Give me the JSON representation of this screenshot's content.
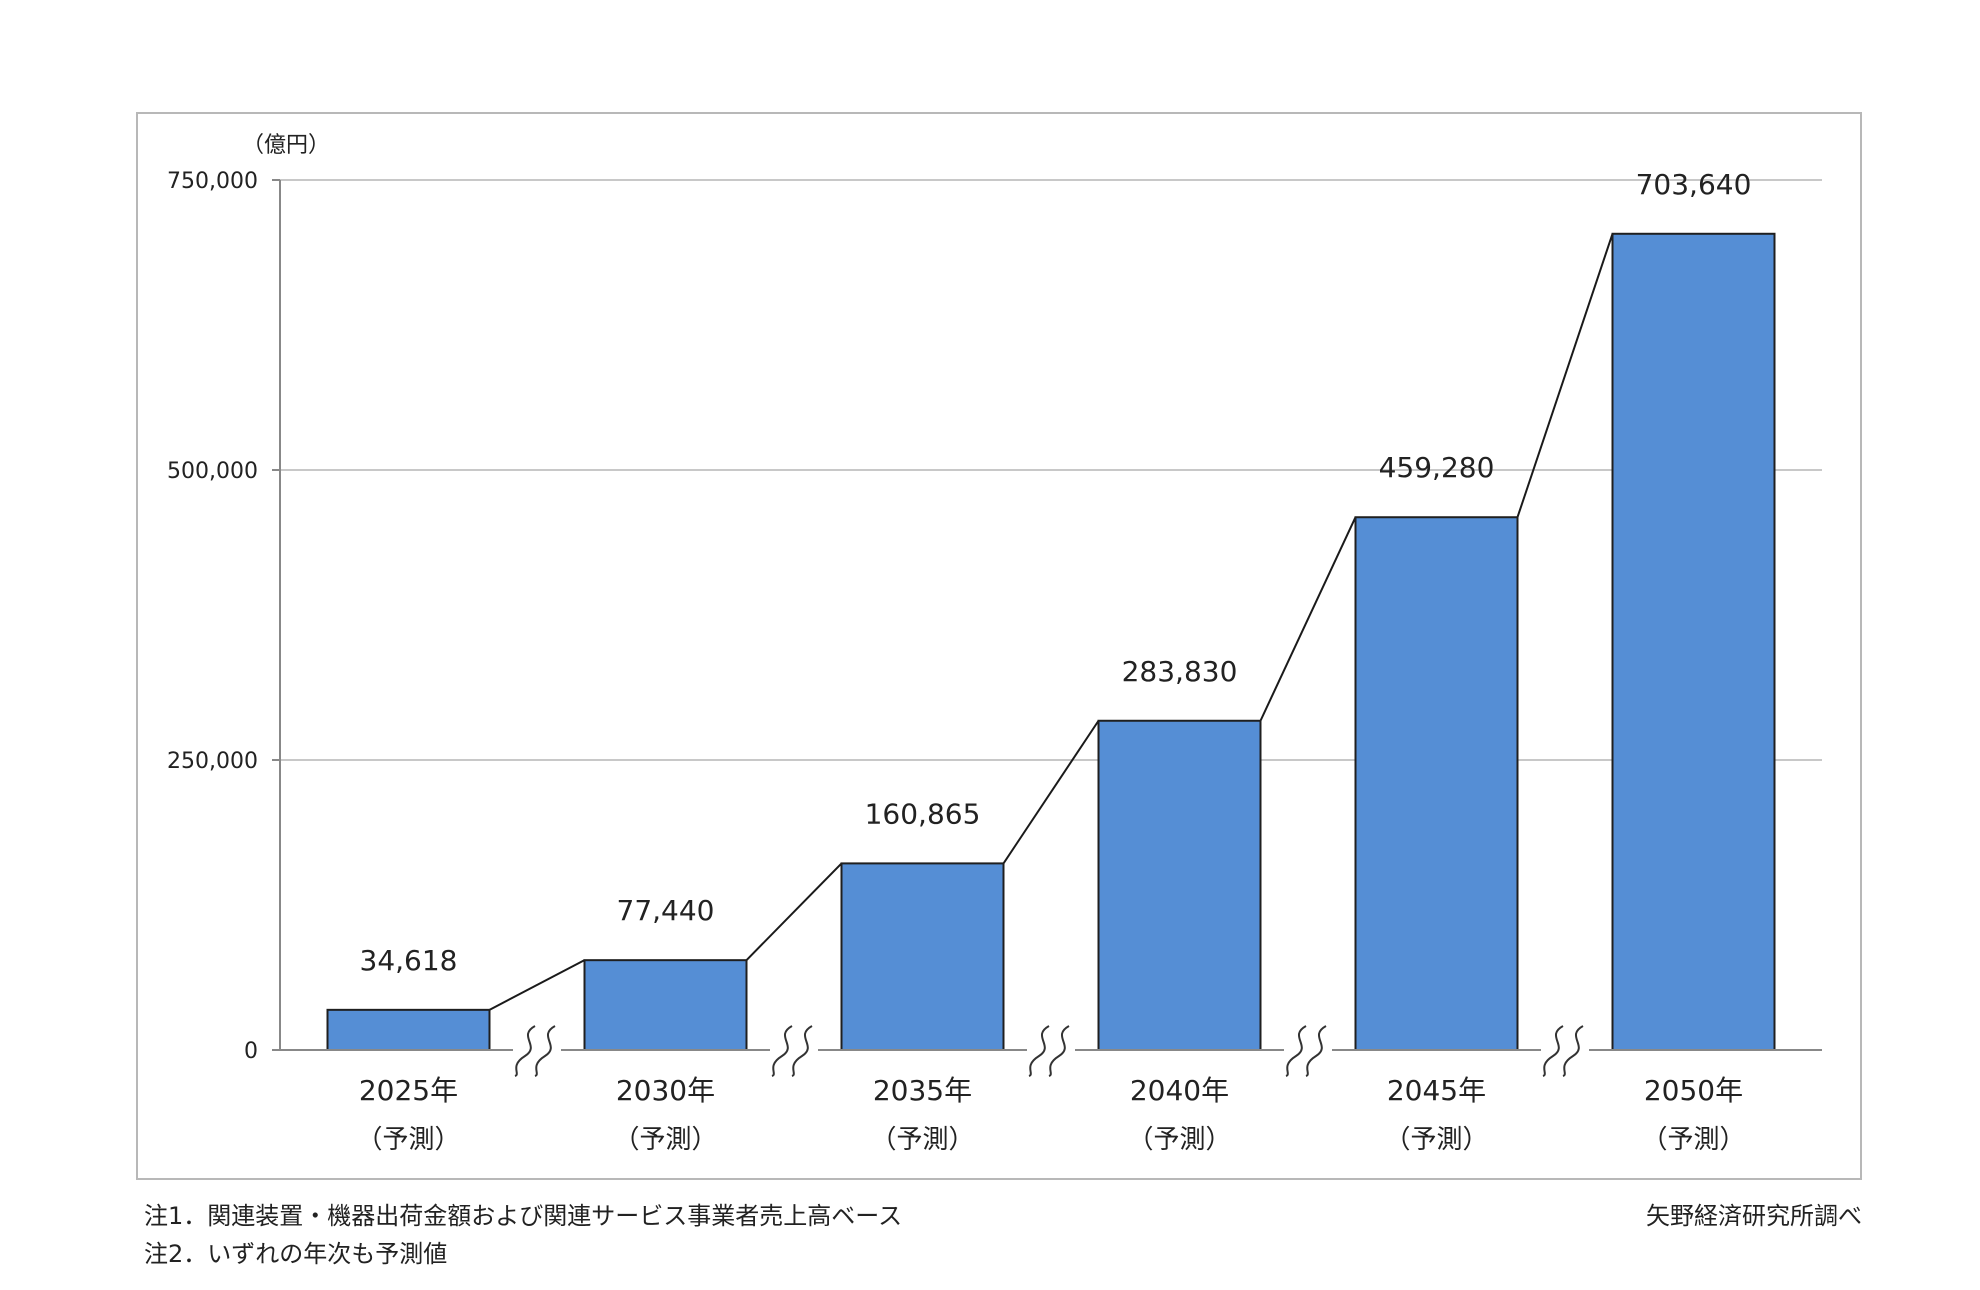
{
  "chart_data": {
    "type": "bar",
    "title": "",
    "xlabel": "",
    "ylabel": "（億円）",
    "ylim": [
      0,
      750000
    ],
    "yticks": [
      0,
      250000,
      500000,
      750000
    ],
    "ytick_labels": [
      "0",
      "250,000",
      "500,000",
      "750,000"
    ],
    "grid": true,
    "categories": [
      "2025年",
      "2030年",
      "2035年",
      "2040年",
      "2045年",
      "2050年"
    ],
    "category_sublabels": [
      "（予測）",
      "（予測）",
      "（予測）",
      "（予測）",
      "（予測）",
      "（予測）"
    ],
    "values": [
      34618,
      77440,
      160865,
      283830,
      459280,
      703640
    ],
    "value_labels": [
      "34,618",
      "77,440",
      "160,865",
      "283,830",
      "459,280",
      "703,640"
    ],
    "connector_lines": true,
    "axis_break_marks": true,
    "colors": {
      "bar": "#558ed5",
      "bar_border": "#1f1f1f",
      "grid": "#c8c8c8",
      "frame": "#b8b8b8"
    }
  },
  "notes": [
    "注1．関連装置・機器出荷金額および関連サービス事業者売上高ベース",
    "注2．いずれの年次も予測値"
  ],
  "source": "矢野経済研究所調べ"
}
